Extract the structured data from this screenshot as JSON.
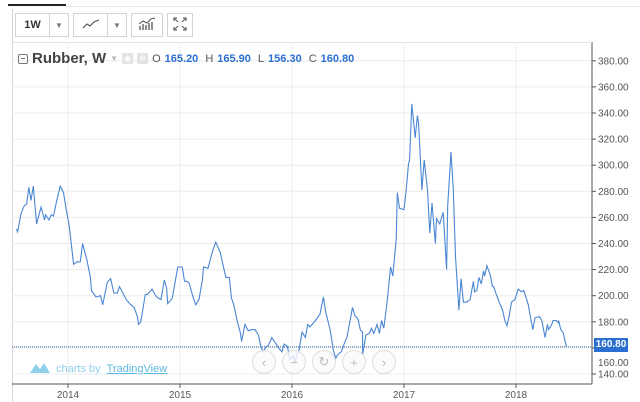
{
  "toolbar": {
    "interval": "1W"
  },
  "legend": {
    "title": "Rubber, W",
    "o_label": "O",
    "o": "165.20",
    "h_label": "H",
    "h": "165.90",
    "l_label": "L",
    "l": "156.30",
    "c_label": "C",
    "c": "160.80"
  },
  "branding": {
    "prefix": "charts by",
    "name": "TradingView"
  },
  "colors": {
    "line": "#4a86d4",
    "accent": "#2b6fd1",
    "grid": "#ececec"
  },
  "chart_data": {
    "type": "line",
    "title": "Rubber, W",
    "xlabel": "",
    "ylabel": "",
    "xlim": [
      2013.5,
      2018.72
    ],
    "ylim": [
      131,
      389
    ],
    "x_ticks": [
      "2014",
      "2015",
      "2016",
      "2017",
      "2018"
    ],
    "y_ticks": [
      "140.00",
      "160.00",
      "180.00",
      "200.00",
      "220.00",
      "240.00",
      "260.00",
      "280.00",
      "300.00",
      "320.00",
      "340.00",
      "360.00",
      "380.00"
    ],
    "last_value": "160.80",
    "grid": true,
    "series": [
      {
        "name": "Rubber",
        "points": [
          [
            2013.54,
            251
          ],
          [
            2013.55,
            249
          ],
          [
            2013.58,
            263
          ],
          [
            2013.61,
            269
          ],
          [
            2013.63,
            270
          ],
          [
            2013.65,
            283
          ],
          [
            2013.67,
            273
          ],
          [
            2013.69,
            284
          ],
          [
            2013.72,
            255
          ],
          [
            2013.76,
            268
          ],
          [
            2013.79,
            258
          ],
          [
            2013.8,
            262
          ],
          [
            2013.83,
            258
          ],
          [
            2013.85,
            262
          ],
          [
            2013.87,
            261
          ],
          [
            2013.9,
            273
          ],
          [
            2013.93,
            284
          ],
          [
            2013.96,
            279
          ],
          [
            2013.98,
            268
          ],
          [
            2014.01,
            254
          ],
          [
            2014.03,
            239
          ],
          [
            2014.05,
            224
          ],
          [
            2014.08,
            226
          ],
          [
            2014.11,
            226
          ],
          [
            2014.13,
            240
          ],
          [
            2014.17,
            227
          ],
          [
            2014.2,
            214
          ],
          [
            2014.21,
            204
          ],
          [
            2014.25,
            199
          ],
          [
            2014.29,
            200
          ],
          [
            2014.31,
            193
          ],
          [
            2014.35,
            210
          ],
          [
            2014.38,
            213
          ],
          [
            2014.41,
            202
          ],
          [
            2014.44,
            202
          ],
          [
            2014.46,
            207
          ],
          [
            2014.49,
            202
          ],
          [
            2014.52,
            197
          ],
          [
            2014.55,
            194
          ],
          [
            2014.59,
            191
          ],
          [
            2014.62,
            184
          ],
          [
            2014.63,
            178
          ],
          [
            2014.65,
            180
          ],
          [
            2014.69,
            201
          ],
          [
            2014.71,
            201
          ],
          [
            2014.75,
            205
          ],
          [
            2014.79,
            199
          ],
          [
            2014.83,
            197
          ],
          [
            2014.86,
            212
          ],
          [
            2014.88,
            206
          ],
          [
            2014.89,
            194
          ],
          [
            2014.93,
            198
          ],
          [
            2014.96,
            212
          ],
          [
            2014.98,
            222
          ],
          [
            2015.02,
            222
          ],
          [
            2015.04,
            211
          ],
          [
            2015.06,
            211
          ],
          [
            2015.08,
            210
          ],
          [
            2015.12,
            198
          ],
          [
            2015.14,
            193
          ],
          [
            2015.17,
            197
          ],
          [
            2015.2,
            212
          ],
          [
            2015.21,
            222
          ],
          [
            2015.25,
            221
          ],
          [
            2015.29,
            234
          ],
          [
            2015.32,
            241
          ],
          [
            2015.36,
            233
          ],
          [
            2015.38,
            225
          ],
          [
            2015.41,
            214
          ],
          [
            2015.44,
            214
          ],
          [
            2015.46,
            198
          ],
          [
            2015.48,
            193
          ],
          [
            2015.51,
            181
          ],
          [
            2015.54,
            171
          ],
          [
            2015.55,
            165
          ],
          [
            2015.58,
            178
          ],
          [
            2015.61,
            173
          ],
          [
            2015.64,
            174
          ],
          [
            2015.67,
            174
          ],
          [
            2015.7,
            170
          ],
          [
            2015.72,
            162
          ],
          [
            2015.74,
            157
          ],
          [
            2015.77,
            161
          ],
          [
            2015.79,
            162
          ],
          [
            2015.82,
            168
          ],
          [
            2015.85,
            164
          ],
          [
            2015.88,
            160
          ],
          [
            2015.91,
            157
          ],
          [
            2015.93,
            163
          ],
          [
            2015.96,
            161
          ],
          [
            2015.98,
            151
          ],
          [
            2016.01,
            154
          ],
          [
            2016.03,
            148
          ],
          [
            2016.04,
            155
          ],
          [
            2016.06,
            157
          ],
          [
            2016.09,
            172
          ],
          [
            2016.12,
            168
          ],
          [
            2016.14,
            178
          ],
          [
            2016.16,
            176
          ],
          [
            2016.18,
            178
          ],
          [
            2016.21,
            181
          ],
          [
            2016.25,
            186
          ],
          [
            2016.28,
            199
          ],
          [
            2016.3,
            188
          ],
          [
            2016.34,
            174
          ],
          [
            2016.37,
            158
          ],
          [
            2016.39,
            152
          ],
          [
            2016.41,
            155
          ],
          [
            2016.44,
            157
          ],
          [
            2016.47,
            164
          ],
          [
            2016.49,
            168
          ],
          [
            2016.54,
            191
          ],
          [
            2016.56,
            185
          ],
          [
            2016.59,
            182
          ],
          [
            2016.61,
            174
          ],
          [
            2016.63,
            172
          ],
          [
            2016.63,
            155
          ],
          [
            2016.66,
            170
          ],
          [
            2016.69,
            171
          ],
          [
            2016.71,
            175
          ],
          [
            2016.73,
            171
          ],
          [
            2016.76,
            178
          ],
          [
            2016.78,
            171
          ],
          [
            2016.8,
            181
          ],
          [
            2016.82,
            175
          ],
          [
            2016.85,
            196
          ],
          [
            2016.88,
            222
          ],
          [
            2016.9,
            215
          ],
          [
            2016.93,
            243
          ],
          [
            2016.94,
            279
          ],
          [
            2016.96,
            267
          ],
          [
            2017.0,
            266
          ],
          [
            2017.02,
            281
          ],
          [
            2017.04,
            301
          ],
          [
            2017.05,
            304
          ],
          [
            2017.07,
            347
          ],
          [
            2017.1,
            321
          ],
          [
            2017.12,
            338
          ],
          [
            2017.13,
            332
          ],
          [
            2017.16,
            281
          ],
          [
            2017.18,
            304
          ],
          [
            2017.21,
            281
          ],
          [
            2017.23,
            248
          ],
          [
            2017.25,
            271
          ],
          [
            2017.28,
            240
          ],
          [
            2017.29,
            259
          ],
          [
            2017.32,
            255
          ],
          [
            2017.35,
            264
          ],
          [
            2017.38,
            220
          ],
          [
            2017.39,
            269
          ],
          [
            2017.42,
            310
          ],
          [
            2017.44,
            281
          ],
          [
            2017.46,
            230
          ],
          [
            2017.49,
            189
          ],
          [
            2017.51,
            213
          ],
          [
            2017.53,
            195
          ],
          [
            2017.56,
            195
          ],
          [
            2017.59,
            197
          ],
          [
            2017.62,
            211
          ],
          [
            2017.63,
            203
          ],
          [
            2017.65,
            204
          ],
          [
            2017.67,
            214
          ],
          [
            2017.69,
            209
          ],
          [
            2017.71,
            219
          ],
          [
            2017.72,
            215
          ],
          [
            2017.74,
            223
          ],
          [
            2017.77,
            216
          ],
          [
            2017.79,
            207
          ],
          [
            2017.8,
            207
          ],
          [
            2017.82,
            202
          ],
          [
            2017.85,
            195
          ],
          [
            2017.88,
            189
          ],
          [
            2017.9,
            181
          ],
          [
            2017.92,
            177
          ],
          [
            2017.94,
            185
          ],
          [
            2017.96,
            195
          ],
          [
            2017.99,
            197
          ],
          [
            2018.02,
            205
          ],
          [
            2018.05,
            203
          ],
          [
            2018.07,
            204
          ],
          [
            2018.11,
            193
          ],
          [
            2018.13,
            183
          ],
          [
            2018.15,
            174
          ],
          [
            2018.17,
            183
          ],
          [
            2018.21,
            184
          ],
          [
            2018.23,
            181
          ],
          [
            2018.26,
            168
          ],
          [
            2018.28,
            178
          ],
          [
            2018.29,
            174
          ],
          [
            2018.32,
            178
          ],
          [
            2018.33,
            181
          ],
          [
            2018.36,
            181
          ],
          [
            2018.38,
            179
          ],
          [
            2018.38,
            181
          ],
          [
            2018.4,
            174
          ],
          [
            2018.42,
            172
          ],
          [
            2018.45,
            160.8
          ]
        ]
      }
    ]
  }
}
